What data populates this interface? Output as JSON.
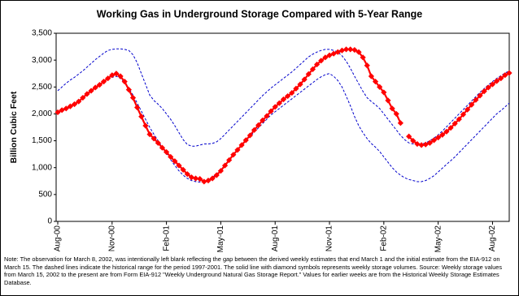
{
  "chart_data": {
    "type": "line",
    "title": "Working Gas in Underground Storage Compared with 5-Year Range",
    "y_label": "Billion Cubic Feet",
    "note": "Note: The observation for March 8, 2002, was intentionally left blank reflecting the gap between the derived weekly estimates that end March 1 and the initial estimate from the EIA-912 on March 15. The dashed lines indicate the historical range for the period 1997-2001. The solid line with diamond symbols represents weekly storage volumes. Source: Weekly storage values from March 15, 2002 to the present are from Form EIA-912 \"Weekly Underground Natural Gas Storage Report.\" Values for earlier weeks are from the Historical Weekly Storage Estimates Database.",
    "categories": [
      "Aug-00",
      null,
      null,
      null,
      null,
      null,
      null,
      null,
      null,
      null,
      null,
      null,
      null,
      "Nov-00",
      null,
      null,
      null,
      null,
      null,
      null,
      null,
      null,
      null,
      null,
      null,
      null,
      "Feb-01",
      null,
      null,
      null,
      null,
      null,
      null,
      null,
      null,
      null,
      null,
      null,
      null,
      "May-01",
      null,
      null,
      null,
      null,
      null,
      null,
      null,
      null,
      null,
      null,
      null,
      null,
      "Aug-01",
      null,
      null,
      null,
      null,
      null,
      null,
      null,
      null,
      null,
      null,
      null,
      null,
      "Nov-01",
      null,
      null,
      null,
      null,
      null,
      null,
      null,
      null,
      null,
      null,
      null,
      null,
      "Feb-02",
      null,
      null,
      null,
      null,
      null,
      null,
      null,
      null,
      null,
      null,
      null,
      null,
      "May-02",
      null,
      null,
      null,
      null,
      null,
      null,
      null,
      null,
      null,
      null,
      null,
      null,
      "Aug-02",
      null,
      null,
      null,
      null
    ],
    "series": [
      {
        "color": "#0000cc",
        "style": "dashed",
        "marker": "none",
        "values": [
          2430,
          2500,
          2570,
          2630,
          2680,
          2740,
          2800,
          2870,
          2940,
          3010,
          3070,
          3130,
          3180,
          3200,
          3210,
          3210,
          3200,
          3180,
          3100,
          2950,
          2750,
          2550,
          2350,
          2250,
          2180,
          2100,
          2000,
          1900,
          1780,
          1650,
          1520,
          1430,
          1400,
          1400,
          1420,
          1440,
          1440,
          1450,
          1480,
          1540,
          1620,
          1700,
          1780,
          1860,
          1940,
          2020,
          2100,
          2180,
          2260,
          2340,
          2410,
          2480,
          2540,
          2600,
          2660,
          2720,
          2780,
          2850,
          2920,
          2990,
          3060,
          3110,
          3150,
          3180,
          3200,
          3200,
          3180,
          3150,
          3080,
          2980,
          2850,
          2700,
          2560,
          2420,
          2300,
          2230,
          2170,
          2100,
          2000,
          1900,
          1800,
          1700,
          1600,
          1520,
          1460,
          1440,
          1430,
          1440,
          1460,
          1500,
          1550,
          1610,
          1680,
          1760,
          1840,
          1920,
          2000,
          2080,
          2160,
          2240,
          2320,
          2400,
          2470,
          2540,
          2600,
          2660,
          2710,
          2760,
          2800
        ]
      },
      {
        "color": "#0000cc",
        "style": "dashed",
        "marker": "none",
        "values": [
          2000,
          2040,
          2080,
          2130,
          2180,
          2240,
          2300,
          2360,
          2420,
          2480,
          2540,
          2600,
          2650,
          2680,
          2700,
          2660,
          2580,
          2480,
          2350,
          2200,
          2050,
          1900,
          1750,
          1620,
          1500,
          1380,
          1260,
          1150,
          1040,
          940,
          860,
          800,
          760,
          740,
          730,
          740,
          770,
          820,
          880,
          960,
          1050,
          1140,
          1230,
          1320,
          1410,
          1500,
          1580,
          1660,
          1740,
          1820,
          1900,
          1980,
          2040,
          2100,
          2160,
          2220,
          2280,
          2340,
          2400,
          2460,
          2520,
          2580,
          2640,
          2690,
          2730,
          2750,
          2700,
          2620,
          2500,
          2330,
          2150,
          1950,
          1780,
          1650,
          1540,
          1450,
          1380,
          1300,
          1200,
          1100,
          1000,
          920,
          860,
          810,
          780,
          760,
          740,
          740,
          760,
          800,
          850,
          920,
          990,
          1060,
          1130,
          1200,
          1280,
          1360,
          1440,
          1520,
          1600,
          1680,
          1760,
          1840,
          1920,
          2000,
          2060,
          2130,
          2200
        ]
      },
      {
        "color": "#ff0000",
        "style": "solid",
        "marker": "diamond",
        "values": [
          2030,
          2070,
          2100,
          2140,
          2180,
          2230,
          2300,
          2370,
          2430,
          2490,
          2540,
          2600,
          2660,
          2720,
          2750,
          2700,
          2600,
          2450,
          2300,
          2120,
          1950,
          1780,
          1620,
          1540,
          1460,
          1370,
          1290,
          1200,
          1120,
          1040,
          960,
          880,
          820,
          800,
          790,
          740,
          760,
          800,
          860,
          940,
          1040,
          1140,
          1240,
          1330,
          1420,
          1510,
          1600,
          1700,
          1790,
          1880,
          1960,
          2050,
          2130,
          2200,
          2270,
          2330,
          2390,
          2470,
          2550,
          2640,
          2740,
          2830,
          2920,
          2990,
          3050,
          3090,
          3120,
          3150,
          3180,
          3200,
          3200,
          3190,
          3150,
          3050,
          2900,
          2700,
          2600,
          2500,
          2400,
          2250,
          2100,
          2000,
          1830,
          null,
          1580,
          1500,
          1440,
          1420,
          1430,
          1460,
          1510,
          1560,
          1610,
          1670,
          1740,
          1820,
          1900,
          1990,
          2080,
          2170,
          2260,
          2340,
          2420,
          2490,
          2550,
          2610,
          2660,
          2720,
          2760
        ]
      }
    ],
    "ylim": [
      0,
      3500
    ],
    "yticks": [
      0,
      500,
      {
        "value": 1000,
        "label": "1,000"
      },
      {
        "value": 1500,
        "label": "1,500"
      },
      {
        "value": 2000,
        "label": "2,000"
      },
      {
        "value": 2500,
        "label": "2,500"
      },
      {
        "value": 3000,
        "label": "3,000"
      },
      {
        "value": 3500,
        "label": "3,500"
      }
    ],
    "grid": false
  }
}
